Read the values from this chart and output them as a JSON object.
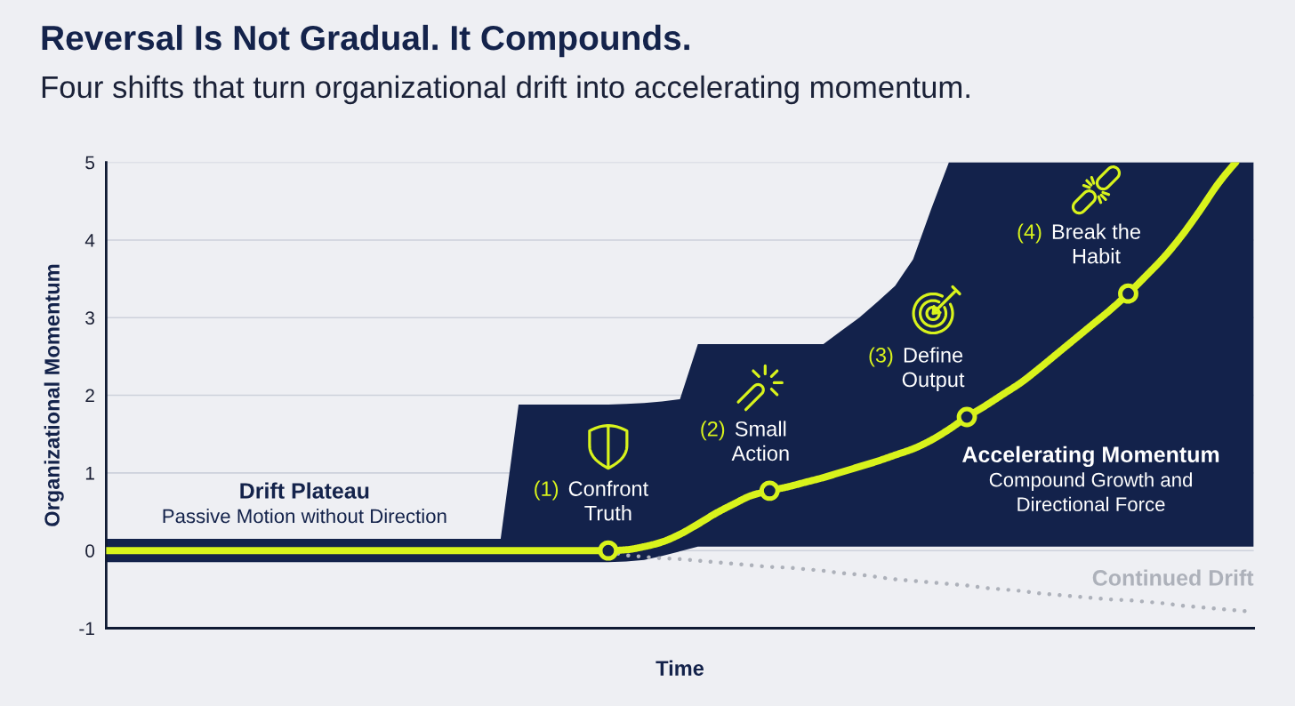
{
  "chart_data": {
    "type": "line",
    "title": "Reversal Is Not Gradual. It Compounds.",
    "subtitle": "Four shifts that turn organizational drift into accelerating momentum.",
    "xlabel": "Time",
    "ylabel": "Organizational Momentum",
    "categories": [
      null,
      null,
      null,
      null,
      null,
      null,
      null,
      null,
      null,
      null,
      null,
      null,
      null,
      null,
      null,
      null,
      null,
      null,
      null,
      null,
      null,
      null,
      null,
      null,
      null,
      null,
      null,
      null,
      null,
      null,
      null,
      null,
      null,
      null,
      null,
      null,
      null,
      null,
      null,
      null,
      null,
      null,
      null,
      null,
      null,
      null,
      null,
      null,
      null,
      null,
      null,
      null,
      null,
      null,
      null,
      null,
      null,
      null,
      null,
      null,
      null,
      null,
      null,
      null,
      null
    ],
    "ylim": [
      -1,
      5
    ],
    "yticks": [
      -1,
      0,
      1,
      2,
      3,
      4,
      5
    ],
    "tick_labels": "y",
    "grid": "y",
    "series": [
      {
        "name": "Continued Drift",
        "color": "#adb1ba",
        "line_style": "dotted",
        "values": [
          null,
          null,
          null,
          null,
          null,
          null,
          null,
          null,
          null,
          null,
          null,
          null,
          null,
          null,
          null,
          null,
          null,
          null,
          null,
          null,
          null,
          null,
          null,
          null,
          null,
          null,
          null,
          null,
          0,
          -0.06,
          -0.08,
          -0.1,
          -0.11,
          -0.13,
          -0.15,
          -0.17,
          -0.19,
          -0.21,
          -0.22,
          -0.24,
          -0.26,
          -0.29,
          -0.31,
          -0.34,
          -0.37,
          -0.39,
          -0.41,
          -0.43,
          -0.45,
          -0.48,
          -0.5,
          -0.52,
          -0.55,
          -0.57,
          -0.59,
          -0.61,
          -0.63,
          -0.64,
          -0.66,
          -0.68,
          -0.71,
          -0.73,
          -0.75,
          -0.77,
          -0.79
        ]
      },
      {
        "color": "#d8f31c",
        "line_style": "solid",
        "values": [
          0,
          0,
          0,
          0,
          0,
          0,
          0,
          0,
          0,
          0,
          0,
          0,
          0,
          0,
          0,
          0,
          0,
          0,
          0,
          0,
          0,
          0,
          0,
          0,
          0,
          0,
          0,
          0,
          0,
          0.01,
          0.05,
          0.11,
          0.21,
          0.34,
          0.48,
          0.6,
          0.71,
          0.77,
          0.82,
          0.88,
          0.94,
          1.01,
          1.08,
          1.15,
          1.23,
          1.31,
          1.42,
          1.56,
          1.72,
          1.86,
          2.01,
          2.16,
          2.34,
          2.53,
          2.72,
          2.91,
          3.1,
          3.31,
          3.54,
          3.78,
          4.06,
          4.38,
          4.72,
          5.0,
          null
        ],
        "lower": [
          -0.15,
          -0.15,
          -0.15,
          -0.15,
          -0.15,
          -0.15,
          -0.15,
          -0.15,
          -0.15,
          -0.15,
          -0.15,
          -0.15,
          -0.15,
          -0.15,
          -0.15,
          -0.15,
          -0.15,
          -0.15,
          -0.15,
          -0.15,
          -0.15,
          -0.15,
          -0.15,
          -0.15,
          -0.15,
          -0.15,
          -0.15,
          -0.15,
          -0.15,
          -0.14,
          -0.12,
          -0.07,
          -0.01,
          0.05,
          0.05,
          0.05,
          0.05,
          0.05,
          0.05,
          0.05,
          0.05,
          0.05,
          0.05,
          0.05,
          0.05,
          0.05,
          0.05,
          0.05,
          0.05,
          0.05,
          0.05,
          0.05,
          0.05,
          0.05,
          0.05,
          0.05,
          0.05,
          0.05,
          0.05,
          0.05,
          0.05,
          0.05,
          0.05,
          0.05,
          0.05
        ],
        "upper": [
          0.15,
          0.15,
          0.15,
          0.15,
          0.15,
          0.15,
          0.15,
          0.15,
          0.15,
          0.15,
          0.15,
          0.15,
          0.15,
          0.15,
          0.15,
          0.15,
          0.15,
          0.15,
          0.15,
          0.15,
          0.15,
          0.15,
          0.15,
          1.88,
          1.88,
          1.88,
          1.88,
          1.88,
          1.88,
          1.89,
          1.9,
          1.92,
          1.95,
          2.66,
          2.66,
          2.66,
          2.66,
          2.66,
          2.66,
          2.66,
          2.66,
          2.83,
          3.0,
          3.2,
          3.41,
          3.75,
          4.39,
          5.0,
          5.0,
          5.0,
          5.0,
          5.0,
          5.0,
          5.0,
          5.0,
          5.0,
          5.0,
          5.0,
          5.0,
          5.0,
          5.0,
          5.0,
          5.0,
          5.0,
          5.0
        ]
      },
      {
        "type": "scatter",
        "color": "#d8f31c",
        "marker": "circle",
        "values": [
          null,
          null,
          null,
          null,
          null,
          null,
          null,
          null,
          null,
          null,
          null,
          null,
          null,
          null,
          null,
          null,
          null,
          null,
          null,
          null,
          null,
          null,
          null,
          null,
          null,
          null,
          null,
          null,
          0,
          null,
          null,
          null,
          null,
          null,
          null,
          null,
          null,
          0.77,
          null,
          null,
          null,
          null,
          null,
          null,
          null,
          null,
          null,
          null,
          1.72,
          null,
          null,
          null,
          null,
          null,
          null,
          null,
          null,
          3.31,
          null,
          null,
          null,
          null,
          null,
          null,
          null
        ]
      }
    ],
    "annotations": [
      "(1) Confront Truth",
      "(2) Small Action",
      "(3) Define Output",
      "(4) Break the Habit",
      "Drift Plateau\nPassive Motion without Direction",
      "Accelerating Momentum\nCompound Growth and\nDirectional Force"
    ]
  }
}
